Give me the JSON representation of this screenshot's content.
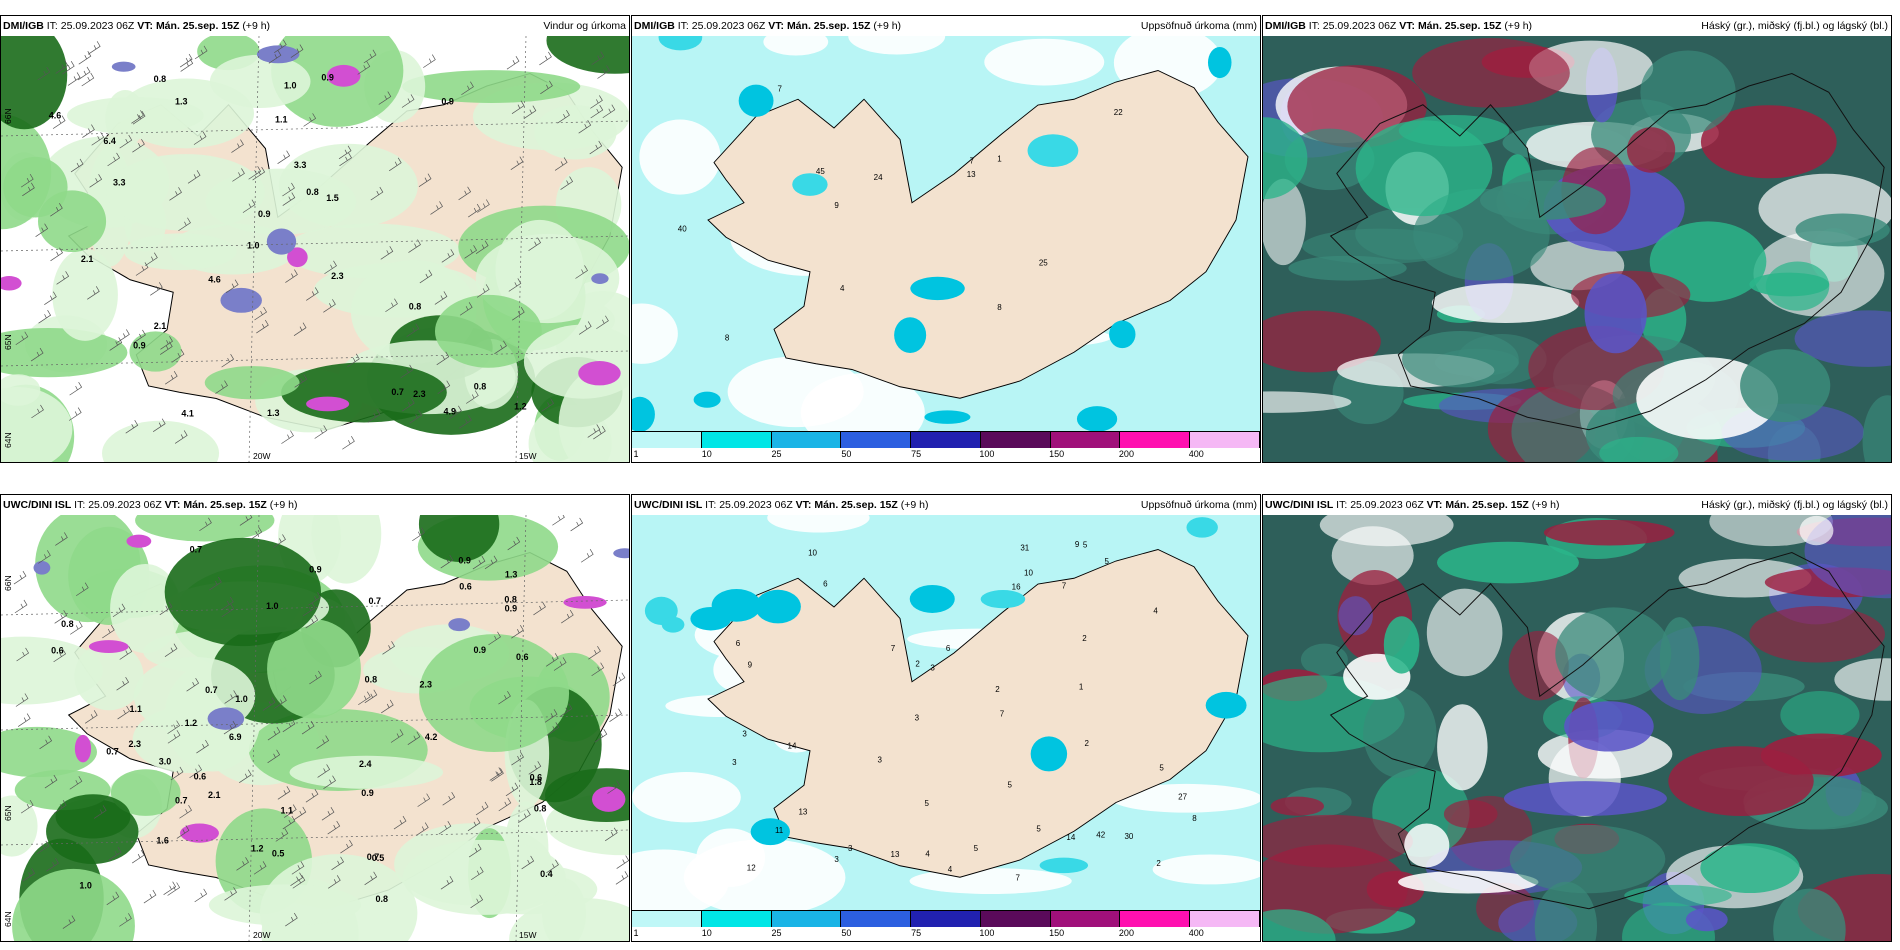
{
  "panels": [
    {
      "id": "p1",
      "left_l": "DMI/IGB",
      "it_label": "IT:",
      "it": "25.09.2023 06Z",
      "vt_label": "VT:",
      "vt": "Mán. 25.sep. 15Z",
      "lead": "(+9 h)",
      "right": "Vindur og úrkoma",
      "kind": "wind",
      "lat_labels": [
        "66N",
        "65N",
        "64N"
      ],
      "lon_labels": [
        "20W",
        "15W"
      ],
      "labels": [
        "0.9",
        "0.7",
        "2.3",
        "2.1",
        "1.3",
        "0.8",
        "1.3",
        "0.9",
        "2.1",
        "1.5",
        "1.1",
        "1.2",
        "0.9",
        "0.8",
        "0.9",
        "1.0",
        "3.3",
        "0.8",
        "0.8",
        "3.3",
        "6.4",
        "4.6",
        "4.6",
        "4.9",
        "4.1",
        "1.0",
        "2.3"
      ]
    },
    {
      "id": "p2",
      "left_l": "DMI/IGB",
      "it_label": "IT:",
      "it": "25.09.2023 06Z",
      "vt_label": "VT:",
      "vt": "Mán. 25.sep. 15Z",
      "lead": "(+9 h)",
      "right": "Uppsöfnuð úrkoma (mm)",
      "kind": "precip",
      "labels": [
        "22",
        "24",
        "25",
        "13",
        "8",
        "7",
        "8",
        "1",
        "9",
        "4",
        "7",
        "45",
        "40"
      ]
    },
    {
      "id": "p3",
      "left_l": "DMI/IGB",
      "it_label": "IT:",
      "it": "25.09.2023 06Z",
      "vt_label": "VT:",
      "vt": "Mán. 25.sep. 15Z",
      "lead": "(+9 h)",
      "right": "Háský (gr.), miðský (fj.bl.) og lágský (bl.)",
      "kind": "cloud"
    },
    {
      "id": "p4",
      "left_l": "UWC/DINI ISL",
      "it_label": "IT:",
      "it": "25.09.2023 06Z",
      "vt_label": "VT:",
      "vt": "Mán. 25.sep. 15Z",
      "lead": "(+9 h)",
      "right": "",
      "kind": "wind",
      "lat_labels": [
        "66N",
        "65N",
        "64N"
      ],
      "lon_labels": [
        "20W",
        "15W"
      ],
      "labels": [
        "0.5",
        "0.6",
        "0.7",
        "0.7",
        "1.1",
        "3.0",
        "1.0",
        "0.8",
        "2.3",
        "0.9",
        "0.8",
        "0.9",
        "0.8",
        "0.5",
        "1.0",
        "0.6",
        "0.9",
        "0.7",
        "0.6",
        "1.1",
        "0.8",
        "0.6",
        "0.7",
        "1.0",
        "2.4",
        "2.1",
        "0.7",
        "0.4",
        "1.8",
        "0.9",
        "6.9",
        "2.3",
        "1.2",
        "1.6",
        "0.8",
        "0.7",
        "1.3",
        "1.2",
        "0.6",
        "0.9",
        "4.2"
      ]
    },
    {
      "id": "p5",
      "left_l": "UWC/DINI ISL",
      "it_label": "IT:",
      "it": "25.09.2023 06Z",
      "vt_label": "VT:",
      "vt": "Mán. 25.sep. 15Z",
      "lead": "(+9 h)",
      "right": "Uppsöfnuð úrkoma (mm)",
      "kind": "precip",
      "labels": [
        "3",
        "7",
        "7",
        "10",
        "16",
        "14",
        "13",
        "11",
        "12",
        "27",
        "31",
        "14",
        "5",
        "3",
        "6",
        "5",
        "4",
        "5",
        "3",
        "2",
        "7",
        "3",
        "5",
        "2",
        "1",
        "9",
        "3",
        "4",
        "5",
        "3",
        "6",
        "7",
        "9",
        "5",
        "2",
        "3",
        "13",
        "10",
        "4",
        "42",
        "30",
        "2",
        "2",
        "8",
        "5",
        "6"
      ]
    },
    {
      "id": "p6",
      "left_l": "UWC/DINI ISL",
      "it_label": "IT:",
      "it": "25.09.2023 06Z",
      "vt_label": "VT:",
      "vt": "Mán. 25.sep. 15Z",
      "lead": "(+9 h)",
      "right": "Háský (gr.), miðský (fj.bl.) og lágský (bl.)",
      "kind": "cloud"
    }
  ],
  "colorbar": {
    "ticks": [
      "1",
      "10",
      "25",
      "50",
      "75",
      "100",
      "150",
      "200",
      "400"
    ],
    "colors": [
      "#bff7f7",
      "#00e6e6",
      "#1ab4e6",
      "#2c5fe0",
      "#2121b0",
      "#5a0a5a",
      "#a0107a",
      "#ff10b0",
      "#f5b8f5"
    ]
  },
  "palette": {
    "land": "#f3e2cf",
    "ocean": "#ffffff",
    "precip_bg": "#b8f5f5",
    "wind_light": "#ddf5d8",
    "wind_mid": "#8fd98a",
    "wind_dark": "#1a6b1a",
    "wind_purple": "#7a7fc9",
    "wind_magenta": "#d24fd2",
    "cloud_high": "#2e5f5a",
    "cloud_mid": "#5b55c8",
    "cloud_low": "#2bb58a",
    "cloud_red": "#9c1f3f"
  }
}
